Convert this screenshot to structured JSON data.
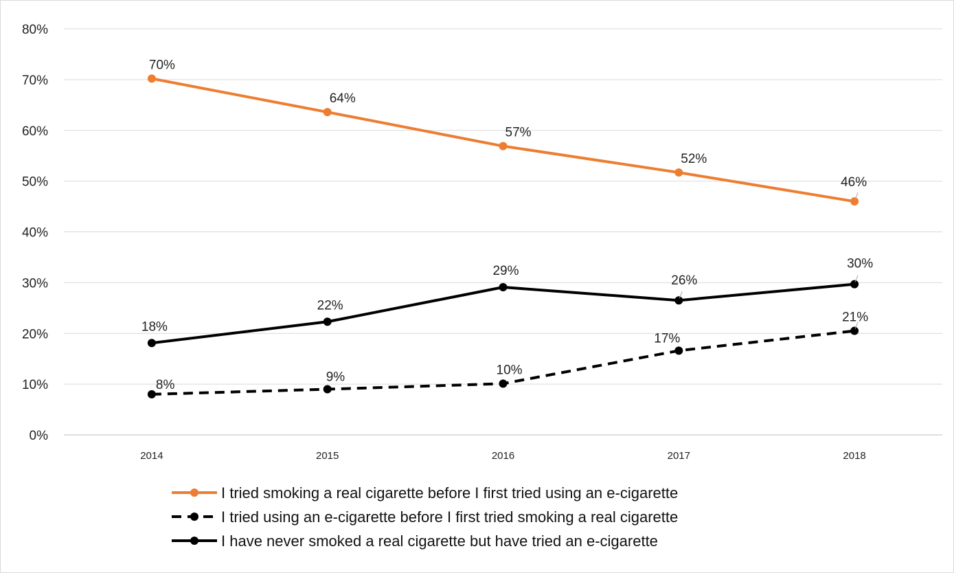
{
  "chart_data": {
    "type": "line",
    "title": "",
    "xlabel": "",
    "ylabel": "",
    "categories": [
      "2014",
      "2015",
      "2016",
      "2017",
      "2018"
    ],
    "ylim": [
      0,
      0.8
    ],
    "yticks": [
      "0%",
      "10%",
      "20%",
      "30%",
      "40%",
      "50%",
      "60%",
      "70%",
      "80%"
    ],
    "grid": true,
    "legend_position": "bottom",
    "series": [
      {
        "name": "I tried smoking a real cigarette before I first tried using an e-cigarette",
        "values": [
          0.702,
          0.636,
          0.569,
          0.517,
          0.46
        ],
        "labels": [
          "70%",
          "64%",
          "57%",
          "52%",
          "46%"
        ],
        "color": "#ed7d31",
        "dash": "solid"
      },
      {
        "name": "I tried using an e-cigarette before I first tried smoking a real cigarette",
        "values": [
          0.08,
          0.09,
          0.101,
          0.166,
          0.205
        ],
        "labels": [
          "8%",
          "9%",
          "10%",
          "17%",
          "21%"
        ],
        "color": "#000000",
        "dash": "dashed"
      },
      {
        "name": "I have never smoked a real cigarette but have tried an e-cigarette",
        "values": [
          0.181,
          0.223,
          0.291,
          0.265,
          0.297
        ],
        "labels": [
          "18%",
          "22%",
          "29%",
          "26%",
          "30%"
        ],
        "color": "#000000",
        "dash": "solid"
      }
    ]
  }
}
